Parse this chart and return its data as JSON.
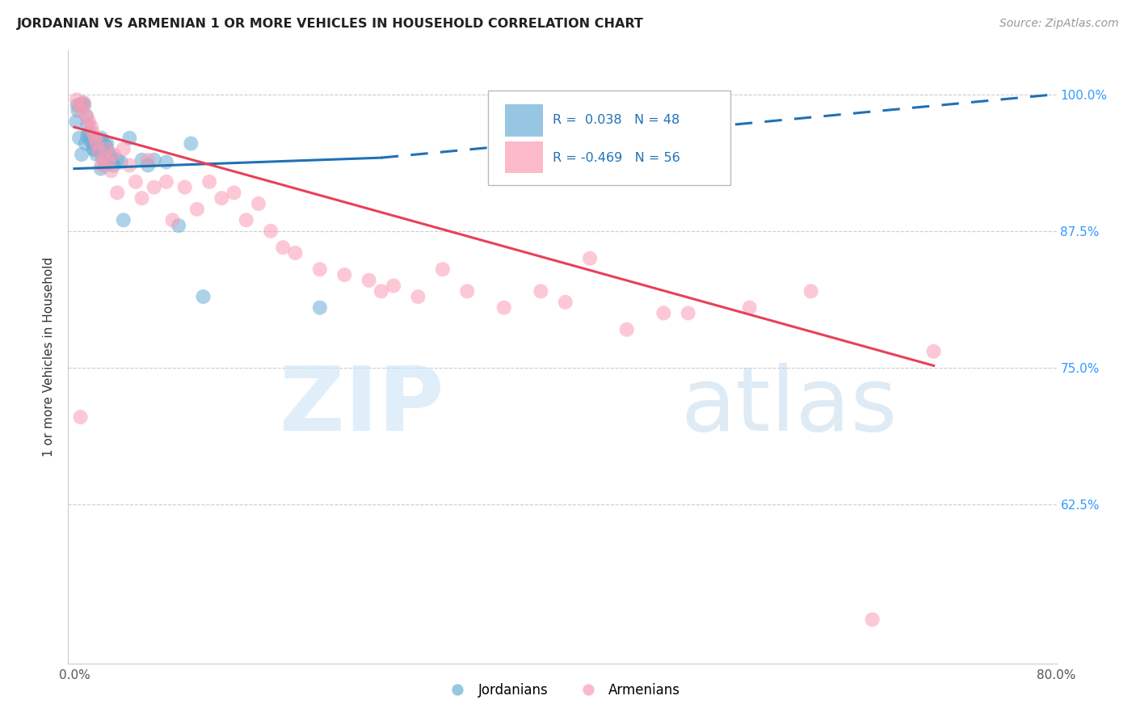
{
  "title": "JORDANIAN VS ARMENIAN 1 OR MORE VEHICLES IN HOUSEHOLD CORRELATION CHART",
  "source": "Source: ZipAtlas.com",
  "ylabel": "1 or more Vehicles in Household",
  "x_tick_labels": [
    "0.0%",
    "",
    "",
    "",
    "",
    "",
    "",
    "",
    "80.0%"
  ],
  "x_tick_vals": [
    0.0,
    10.0,
    20.0,
    30.0,
    40.0,
    50.0,
    60.0,
    70.0,
    80.0
  ],
  "y_tick_labels": [
    "62.5%",
    "75.0%",
    "87.5%",
    "100.0%"
  ],
  "y_tick_vals": [
    62.5,
    75.0,
    87.5,
    100.0
  ],
  "xlim": [
    -0.5,
    80.0
  ],
  "ylim": [
    48.0,
    104.0
  ],
  "jordanian_R": 0.038,
  "jordanian_N": 48,
  "armenian_R": -0.469,
  "armenian_N": 56,
  "legend_label_jordanian": "Jordanians",
  "legend_label_armenian": "Armenians",
  "jordanian_color": "#6baed6",
  "armenian_color": "#fc9cb4",
  "jordanian_trend_color": "#2171b5",
  "armenian_trend_color": "#e8405a",
  "jordanian_trend_x0": 0.0,
  "jordanian_trend_y0": 93.2,
  "jordanian_trend_x1": 25.0,
  "jordanian_trend_y1": 94.2,
  "jordanian_dash_x0": 25.0,
  "jordanian_dash_y0": 94.2,
  "jordanian_dash_x1": 80.0,
  "jordanian_dash_y1": 100.0,
  "armenian_trend_x0": 0.0,
  "armenian_trend_y0": 97.0,
  "armenian_trend_x1": 70.0,
  "armenian_trend_y1": 75.2,
  "jordanian_x": [
    0.15,
    0.3,
    0.5,
    0.7,
    0.8,
    1.0,
    1.1,
    1.2,
    1.3,
    1.4,
    1.5,
    1.6,
    1.7,
    1.8,
    1.9,
    2.0,
    2.1,
    2.2,
    2.3,
    2.4,
    2.5,
    2.6,
    2.7,
    2.8,
    2.9,
    3.0,
    3.2,
    3.5,
    3.8,
    4.0,
    4.5,
    5.5,
    6.0,
    6.5,
    7.5,
    8.5,
    9.5,
    10.5,
    0.4,
    0.6,
    0.9,
    1.05,
    1.55,
    2.15,
    2.65,
    3.1,
    0.25,
    20.0
  ],
  "jordanian_y": [
    97.5,
    98.5,
    99.0,
    99.2,
    99.0,
    98.0,
    97.2,
    96.5,
    95.8,
    96.2,
    95.5,
    95.0,
    95.8,
    94.5,
    95.2,
    94.8,
    95.0,
    96.0,
    94.2,
    95.5,
    93.5,
    95.2,
    94.8,
    93.8,
    94.5,
    94.2,
    93.5,
    94.0,
    93.8,
    88.5,
    96.0,
    94.0,
    93.5,
    94.0,
    93.8,
    88.0,
    95.5,
    81.5,
    96.0,
    94.5,
    95.5,
    96.2,
    95.0,
    93.2,
    95.5,
    93.8,
    99.0,
    80.5
  ],
  "armenian_x": [
    0.2,
    0.4,
    0.6,
    0.8,
    1.0,
    1.2,
    1.4,
    1.5,
    1.7,
    1.8,
    2.0,
    2.2,
    2.4,
    2.6,
    2.8,
    3.0,
    3.2,
    3.5,
    4.0,
    4.5,
    5.0,
    5.5,
    6.0,
    6.5,
    7.5,
    8.0,
    9.0,
    10.0,
    11.0,
    12.0,
    13.0,
    14.0,
    15.0,
    16.0,
    17.0,
    18.0,
    20.0,
    22.0,
    24.0,
    25.0,
    26.0,
    28.0,
    30.0,
    32.0,
    35.0,
    38.0,
    40.0,
    42.0,
    45.0,
    48.0,
    50.0,
    55.0,
    60.0,
    65.0,
    70.0,
    0.5
  ],
  "armenian_y": [
    99.5,
    99.0,
    98.5,
    99.2,
    98.0,
    97.5,
    97.0,
    96.5,
    96.0,
    95.5,
    94.8,
    93.5,
    94.0,
    95.0,
    93.8,
    93.0,
    94.5,
    91.0,
    95.0,
    93.5,
    92.0,
    90.5,
    94.0,
    91.5,
    92.0,
    88.5,
    91.5,
    89.5,
    92.0,
    90.5,
    91.0,
    88.5,
    90.0,
    87.5,
    86.0,
    85.5,
    84.0,
    83.5,
    83.0,
    82.0,
    82.5,
    81.5,
    84.0,
    82.0,
    80.5,
    82.0,
    81.0,
    85.0,
    78.5,
    80.0,
    80.0,
    80.5,
    82.0,
    52.0,
    76.5,
    70.5
  ]
}
